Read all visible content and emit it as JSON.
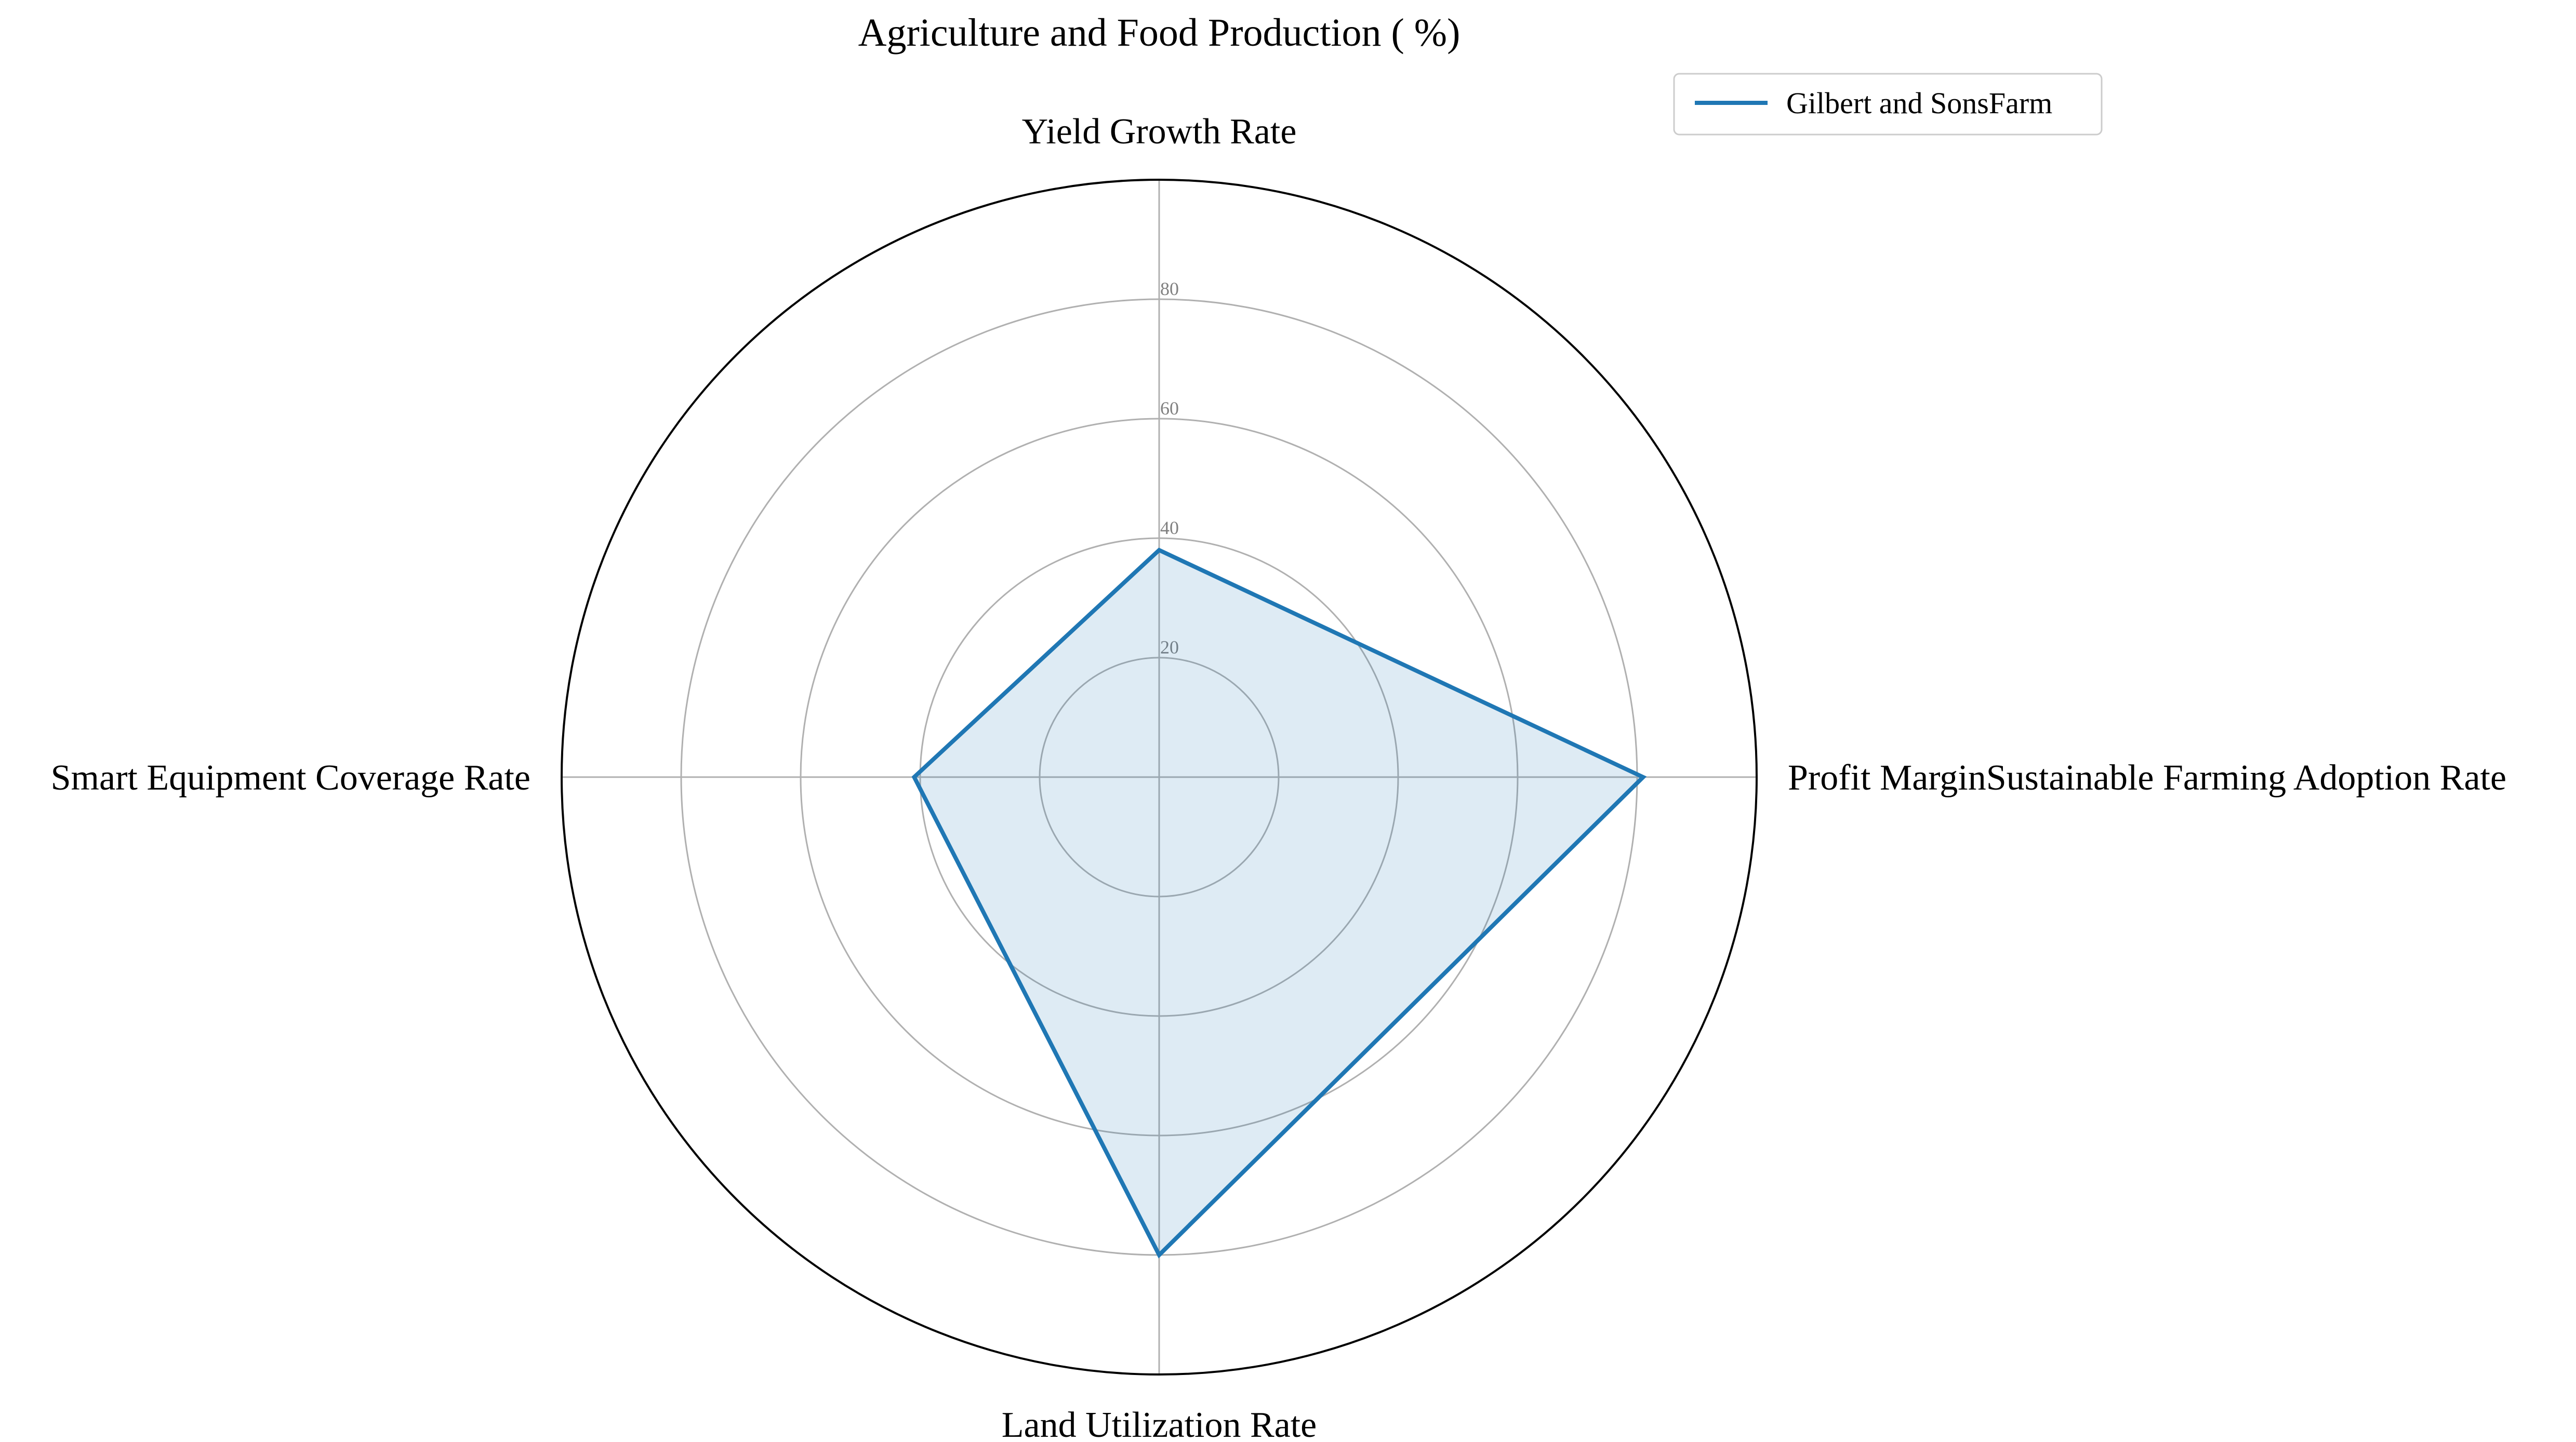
{
  "chart_data": {
    "type": "radar",
    "title": "Agriculture and Food Production ( %)",
    "categories": [
      "Yield Growth Rate",
      "Profit MarginSustainable Farming Adoption Rate",
      "Land Utilization Rate",
      "Smart Equipment Coverage Rate"
    ],
    "series": [
      {
        "name": "Gilbert and SonsFarm",
        "values": [
          38,
          81,
          80,
          41
        ]
      }
    ],
    "rlim": [
      0,
      100
    ],
    "rticks": [
      20,
      40,
      60,
      80
    ],
    "rtick_labels": [
      "20",
      "40",
      "60",
      "80"
    ],
    "grid": true,
    "legend_position": "top-right",
    "colors": {
      "series": "#1f77b4",
      "fill": "#1f77b4",
      "grid": "#b0b0b0",
      "outer_ring": "#000000"
    }
  }
}
